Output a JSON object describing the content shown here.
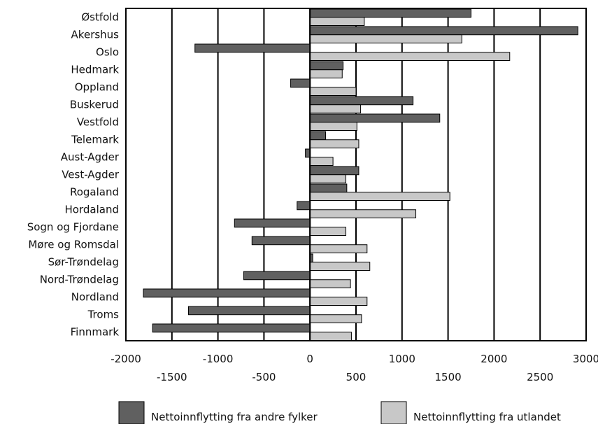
{
  "chart_data": {
    "type": "bar",
    "orientation": "horizontal",
    "title": "",
    "xlabel": "",
    "ylabel": "",
    "xlim": [
      -2000,
      3000
    ],
    "x_ticks": [
      -2000,
      -1500,
      -1000,
      -500,
      0,
      500,
      1000,
      1500,
      2000,
      2500,
      3000
    ],
    "grid": "vertical lines at major ticks",
    "legend_position": "bottom",
    "categories": [
      "Østfold",
      "Akershus",
      "Oslo",
      "Hedmark",
      "Oppland",
      "Buskerud",
      "Vestfold",
      "Telemark",
      "Aust-Agder",
      "Vest-Agder",
      "Rogaland",
      "Hordaland",
      "Sogn og Fjordane",
      "Møre og Romsdal",
      "Sør-Trøndelag",
      "Nord-Trøndelag",
      "Nordland",
      "Troms",
      "Finnmark"
    ],
    "series": [
      {
        "name": "Nettoinnflytting fra andre fylker",
        "color": "#606060",
        "values": [
          1750,
          2910,
          -1250,
          360,
          -210,
          1120,
          1410,
          170,
          -50,
          530,
          400,
          -140,
          -820,
          -630,
          30,
          -720,
          -1810,
          -1320,
          -1710
        ]
      },
      {
        "name": "Nettoinnflytting fra utlandet",
        "color": "#c8c8c8",
        "values": [
          590,
          1650,
          2170,
          350,
          500,
          550,
          510,
          530,
          250,
          390,
          1520,
          1150,
          390,
          620,
          650,
          440,
          620,
          560,
          450
        ]
      }
    ]
  }
}
